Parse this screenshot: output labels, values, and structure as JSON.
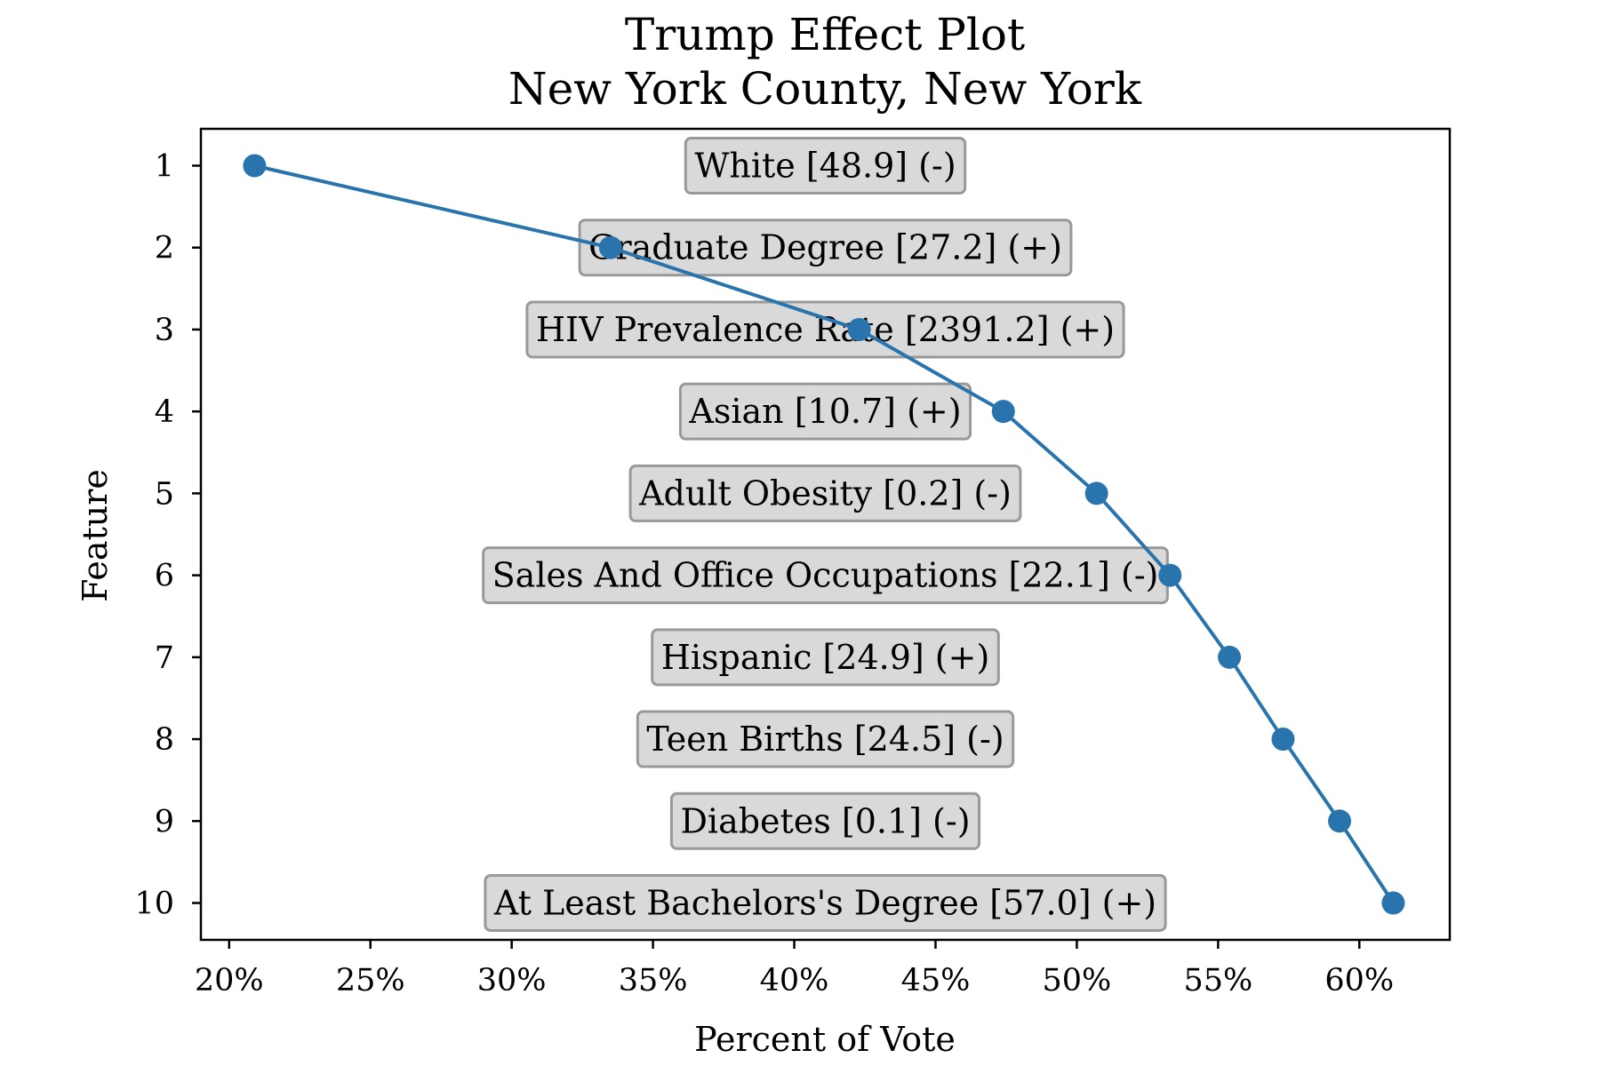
{
  "chart_data": {
    "type": "line",
    "title": "Trump Effect Plot",
    "subtitle": "New York County, New York",
    "xlabel": "Percent of Vote",
    "ylabel": "Feature",
    "xlim": [
      19,
      63.2
    ],
    "ylim": [
      10.45,
      0.55
    ],
    "x_ticks": [
      20,
      25,
      30,
      35,
      40,
      45,
      50,
      55,
      60
    ],
    "x_tick_labels": [
      "20%",
      "25%",
      "30%",
      "35%",
      "40%",
      "45%",
      "50%",
      "55%",
      "60%"
    ],
    "y_ticks": [
      1,
      2,
      3,
      4,
      5,
      6,
      7,
      8,
      9,
      10
    ],
    "y_tick_labels": [
      "1",
      "2",
      "3",
      "4",
      "5",
      "6",
      "7",
      "8",
      "9",
      "10"
    ],
    "grid": false,
    "series_color": "#2a74ae",
    "box_color": "#d9d9d9",
    "points": [
      {
        "feature": 1,
        "x": 20.9,
        "label": "White [48.9] (-)"
      },
      {
        "feature": 2,
        "x": 33.5,
        "label": "Graduate Degree [27.2] (+)"
      },
      {
        "feature": 3,
        "x": 42.3,
        "label": "HIV Prevalence Rate [2391.2] (+)"
      },
      {
        "feature": 4,
        "x": 47.4,
        "label": "Asian [10.7] (+)"
      },
      {
        "feature": 5,
        "x": 50.7,
        "label": "Adult Obesity [0.2] (-)"
      },
      {
        "feature": 6,
        "x": 53.3,
        "label": "Sales And Office Occupations [22.1] (-)"
      },
      {
        "feature": 7,
        "x": 55.4,
        "label": "Hispanic [24.9] (+)"
      },
      {
        "feature": 8,
        "x": 57.3,
        "label": "Teen Births [24.5] (-)"
      },
      {
        "feature": 9,
        "x": 59.3,
        "label": "Diabetes [0.1] (-)"
      },
      {
        "feature": 10,
        "x": 61.2,
        "label": "At Least Bachelors's Degree [57.0] (+)"
      }
    ]
  }
}
